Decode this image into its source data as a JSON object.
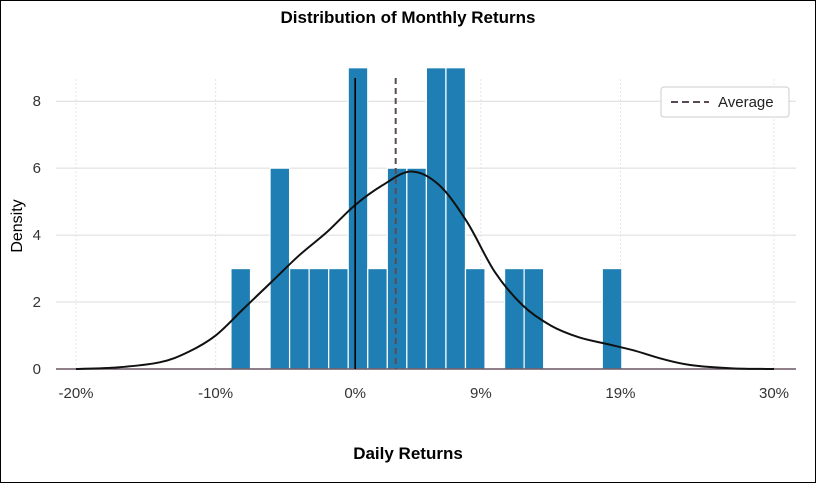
{
  "chart_data": {
    "type": "bar",
    "title": "Distribution of Monthly Returns",
    "xlabel": "Daily Returns",
    "ylabel": "Density",
    "xlim": [
      -20,
      30
    ],
    "ylim": [
      0,
      9.5
    ],
    "x_ticks": [
      {
        "value": -20,
        "label": "-20%"
      },
      {
        "value": -10,
        "label": "-10%"
      },
      {
        "value": 0,
        "label": "0%"
      },
      {
        "value": 9,
        "label": "9%"
      },
      {
        "value": 19,
        "label": "19%"
      },
      {
        "value": 30,
        "label": "30%"
      }
    ],
    "y_ticks": [
      0,
      2,
      4,
      6,
      8
    ],
    "grid": true,
    "bar_color": "#1f7fb5",
    "bins": [
      {
        "start": -8.9,
        "end": -7.5,
        "value": 3
      },
      {
        "start": -6.1,
        "end": -4.7,
        "value": 6
      },
      {
        "start": -4.7,
        "end": -3.3,
        "value": 3
      },
      {
        "start": -3.3,
        "end": -1.9,
        "value": 3
      },
      {
        "start": -1.9,
        "end": -0.5,
        "value": 3
      },
      {
        "start": -0.5,
        "end": 0.9,
        "value": 9
      },
      {
        "start": 0.9,
        "end": 2.3,
        "value": 3
      },
      {
        "start": 2.3,
        "end": 3.7,
        "value": 6
      },
      {
        "start": 3.7,
        "end": 5.1,
        "value": 6
      },
      {
        "start": 5.1,
        "end": 6.5,
        "value": 9
      },
      {
        "start": 6.5,
        "end": 7.9,
        "value": 9
      },
      {
        "start": 7.9,
        "end": 9.3,
        "value": 3
      },
      {
        "start": 10.7,
        "end": 12.1,
        "value": 3
      },
      {
        "start": 12.1,
        "end": 13.5,
        "value": 3
      },
      {
        "start": 17.7,
        "end": 19.1,
        "value": 3
      }
    ],
    "kde": {
      "x": [
        -20,
        -17,
        -14,
        -12,
        -10,
        -8,
        -6,
        -4,
        -2,
        0,
        2,
        4,
        6,
        8,
        10,
        12,
        14,
        16,
        18,
        20,
        22,
        24,
        27,
        30
      ],
      "y": [
        0,
        0.05,
        0.2,
        0.5,
        1.0,
        1.8,
        2.6,
        3.4,
        4.1,
        4.9,
        5.5,
        5.9,
        5.5,
        4.4,
        2.9,
        1.9,
        1.3,
        0.95,
        0.75,
        0.55,
        0.3,
        0.12,
        0.02,
        0
      ]
    },
    "zero_line": 0,
    "average": 2.9,
    "legend": {
      "position": "top-right",
      "entries": [
        "Average"
      ]
    }
  }
}
